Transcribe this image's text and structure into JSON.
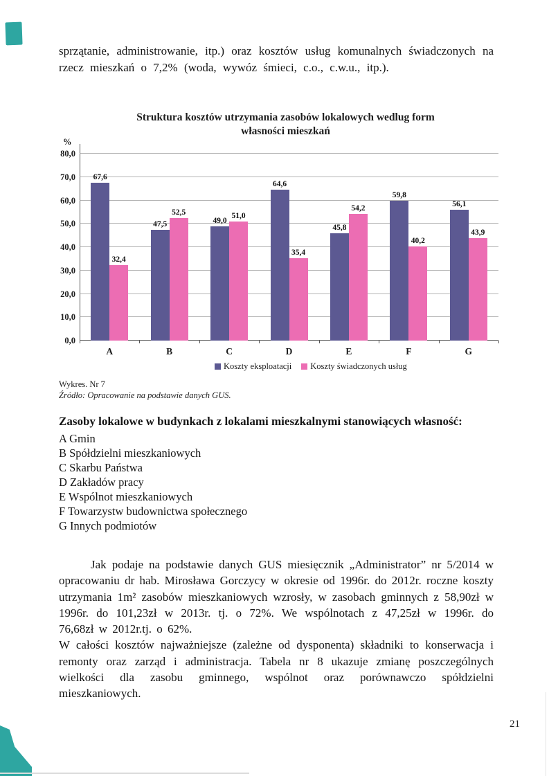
{
  "page": {
    "number": "21"
  },
  "intro_paragraph": "sprzątanie, administrowanie, itp.) oraz kosztów usług komunalnych świadczonych na rzecz mieszkań o 7,2% (woda, wywóz śmieci, c.o., c.w.u., itp.).",
  "chart_data": {
    "type": "bar",
    "title": "Struktura kosztów utrzymania zasobów lokalowych wedlug form własności mieszkań",
    "title_line1": "Struktura kosztów utrzymania zasobów lokalowych wedlug form",
    "title_line2": "własności mieszkań",
    "unit_label": "%",
    "categories": [
      "A",
      "B",
      "C",
      "D",
      "E",
      "F",
      "G"
    ],
    "series": [
      {
        "name": "Koszty eksploatacji",
        "color": "#5c5992",
        "values": [
          67.6,
          47.5,
          49.0,
          64.6,
          45.8,
          59.8,
          56.1
        ],
        "labels": [
          "67,6",
          "47,5",
          "49,0",
          "64,6",
          "45,8",
          "59,8",
          "56,1"
        ]
      },
      {
        "name": "Koszty świadczonych usług",
        "color": "#ec6db3",
        "values": [
          32.4,
          52.5,
          51.0,
          35.4,
          54.2,
          40.2,
          43.9
        ],
        "labels": [
          "32,4",
          "52,5",
          "51,0",
          "35,4",
          "54,2",
          "40,2",
          "43,9"
        ]
      }
    ],
    "ylim": [
      0,
      80
    ],
    "ytick_step": 10,
    "yticks": [
      "80,0",
      "70,0",
      "60,0",
      "50,0",
      "40,0",
      "30,0",
      "20,0",
      "10,0",
      "0,0"
    ],
    "grid": true,
    "legend_position": "bottom"
  },
  "chart_caption": {
    "line1": "Wykres. Nr 7",
    "line2": "Źródło: Opracowanie na podstawie danych GUS."
  },
  "ownership_section": {
    "heading": "Zasoby lokalowe w budynkach z lokalami mieszkalnymi stanowiących własność:",
    "items": [
      "A Gmin",
      "B Spółdzielni mieszkaniowych",
      "C Skarbu Państwa",
      "D Zakładów pracy",
      "E Wspólnot mieszkaniowych",
      "F Towarzystw budownictwa społecznego",
      "G Innych podmiotów"
    ]
  },
  "body_paragraphs": [
    "Jak podaje na podstawie danych GUS miesięcznik „Administrator” nr 5/2014 w opracowaniu dr hab. Mirosława Gorczycy w okresie od 1996r. do 2012r. roczne koszty utrzymania 1m² zasobów mieszkaniowych wzrosły, w zasobach gminnych z 58,90zł w 1996r. do 101,23zł w 2013r. tj. o 72%. We wspólnotach z 47,25zł w 1996r. do 76,68zł w 2012r.tj. o 62%.",
    "W całości kosztów najważniejsze (zależne od dysponenta) składniki to konserwacja i remonty oraz zarząd i administracja. Tabela nr 8 ukazuje zmianę poszczególnych wielkości dla zasobu gminnego, wspólnot oraz porównawczo spółdzielni mieszkaniowych."
  ],
  "scan_marks": {
    "color": "#2ea6a1"
  }
}
